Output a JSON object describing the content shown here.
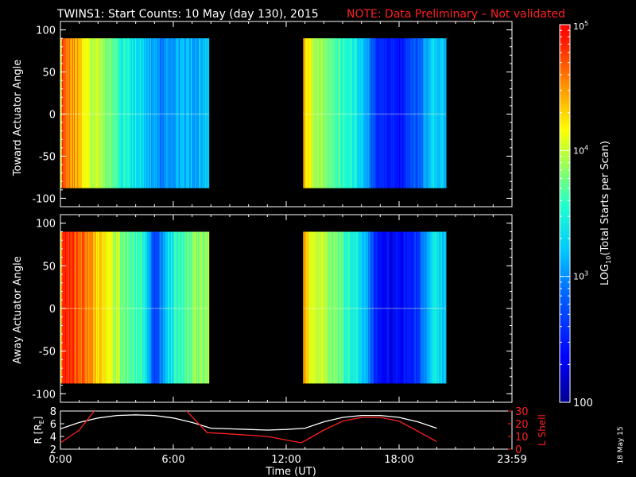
{
  "title": {
    "main": "TWINS1: Start Counts: 10 May (day 130), 2015",
    "note": "NOTE: Data Preliminary – Not validated"
  },
  "side_label": "18 May 15",
  "colors": {
    "background": "#000000",
    "axis": "#ffffff",
    "note": "#ff2020",
    "lshell_line": "#ff2020",
    "r_line": "#ffffff"
  },
  "chart_data": [
    {
      "type": "heatmap",
      "panel": "top",
      "ylabel": "Toward Actuator Angle",
      "ylim": [
        -110,
        110
      ],
      "yticks": [
        "100",
        "50",
        "0",
        "-50",
        "-100"
      ],
      "xlim": [
        0,
        24
      ],
      "data_segments_hours": [
        [
          0,
          7.9
        ],
        [
          12.9,
          20.5
        ]
      ],
      "angle_range": [
        -88,
        90
      ],
      "colormap": "rainbow",
      "color_scale": "log",
      "time_profile": [
        {
          "t": 0.0,
          "v": 4.0
        },
        {
          "t": 0.1,
          "v": 4.75
        },
        {
          "t": 0.5,
          "v": 4.6
        },
        {
          "t": 1.0,
          "v": 4.35
        },
        {
          "t": 1.6,
          "v": 4.05
        },
        {
          "t": 2.2,
          "v": 3.85
        },
        {
          "t": 2.8,
          "v": 3.7
        },
        {
          "t": 3.4,
          "v": 3.5
        },
        {
          "t": 4.0,
          "v": 3.4
        },
        {
          "t": 4.6,
          "v": 3.2
        },
        {
          "t": 5.0,
          "v": 3.05
        },
        {
          "t": 5.6,
          "v": 3.0
        },
        {
          "t": 6.2,
          "v": 3.15
        },
        {
          "t": 7.0,
          "v": 3.1
        },
        {
          "t": 7.9,
          "v": 3.2
        },
        {
          "t": 12.9,
          "v": 4.4
        },
        {
          "t": 13.2,
          "v": 4.1
        },
        {
          "t": 13.8,
          "v": 3.85
        },
        {
          "t": 14.6,
          "v": 3.7
        },
        {
          "t": 15.4,
          "v": 3.5
        },
        {
          "t": 16.2,
          "v": 3.2
        },
        {
          "t": 16.8,
          "v": 2.55
        },
        {
          "t": 18.0,
          "v": 2.45
        },
        {
          "t": 19.0,
          "v": 2.8
        },
        {
          "t": 19.8,
          "v": 3.3
        },
        {
          "t": 20.5,
          "v": 3.1
        }
      ]
    },
    {
      "type": "heatmap",
      "panel": "middle",
      "ylabel": "Away Actuator Angle",
      "ylim": [
        -110,
        110
      ],
      "yticks": [
        "100",
        "50",
        "0",
        "-50",
        "-100"
      ],
      "xlim": [
        0,
        24
      ],
      "data_segments_hours": [
        [
          0,
          7.9
        ],
        [
          12.9,
          20.5
        ]
      ],
      "angle_range": [
        -88,
        90
      ],
      "colormap": "rainbow",
      "color_scale": "log",
      "time_profile": [
        {
          "t": 0.0,
          "v": 4.1
        },
        {
          "t": 0.1,
          "v": 4.85
        },
        {
          "t": 0.5,
          "v": 4.75
        },
        {
          "t": 1.0,
          "v": 4.7
        },
        {
          "t": 1.6,
          "v": 4.5
        },
        {
          "t": 2.2,
          "v": 4.2
        },
        {
          "t": 2.8,
          "v": 4.0
        },
        {
          "t": 3.4,
          "v": 3.8
        },
        {
          "t": 4.0,
          "v": 3.7
        },
        {
          "t": 4.6,
          "v": 3.35
        },
        {
          "t": 5.0,
          "v": 2.6
        },
        {
          "t": 5.6,
          "v": 3.2
        },
        {
          "t": 6.2,
          "v": 3.6
        },
        {
          "t": 7.0,
          "v": 3.7
        },
        {
          "t": 7.9,
          "v": 3.9
        },
        {
          "t": 12.9,
          "v": 4.5
        },
        {
          "t": 13.2,
          "v": 4.2
        },
        {
          "t": 13.8,
          "v": 4.0
        },
        {
          "t": 14.6,
          "v": 3.8
        },
        {
          "t": 15.4,
          "v": 3.55
        },
        {
          "t": 16.2,
          "v": 3.2
        },
        {
          "t": 16.8,
          "v": 2.45
        },
        {
          "t": 18.0,
          "v": 2.35
        },
        {
          "t": 19.0,
          "v": 2.6
        },
        {
          "t": 19.8,
          "v": 3.4
        },
        {
          "t": 20.5,
          "v": 3.2
        }
      ]
    },
    {
      "type": "line",
      "panel": "bottom",
      "ylabel_left": "R [R_E]",
      "ylabel_right": "L Shell",
      "ylim_left": [
        2,
        8
      ],
      "ylim_right": [
        0,
        30
      ],
      "yticks_left": [
        "8",
        "6",
        "4",
        "2"
      ],
      "yticks_right": [
        "30",
        "20",
        "10",
        "0"
      ],
      "xlabel": "Time (UT)",
      "xlim": [
        0,
        24
      ],
      "xtick_labels": [
        "0:00",
        "6:00",
        "12:00",
        "18:00",
        "23:59"
      ],
      "xtick_values": [
        0,
        6,
        12,
        18,
        24
      ],
      "series": [
        {
          "axis": "left",
          "color": "#ffffff",
          "x": [
            0,
            1,
            2,
            3,
            4,
            5,
            6,
            7,
            8,
            9,
            10,
            11,
            12,
            13,
            14,
            15,
            16,
            17,
            18,
            19,
            20
          ],
          "y": [
            5.2,
            6.2,
            6.9,
            7.3,
            7.4,
            7.3,
            6.9,
            6.2,
            5.3,
            5.2,
            5.1,
            5.0,
            5.1,
            5.3,
            6.3,
            7.0,
            7.3,
            7.3,
            7.0,
            6.3,
            5.3
          ]
        },
        {
          "axis": "right",
          "color": "#ff2020",
          "x": [
            0,
            1,
            1.8,
            2.0,
            6.5,
            6.7,
            7.8,
            9.0,
            10.0,
            11.0,
            12.8,
            14.0,
            15.0,
            16.0,
            17.0,
            18.0,
            19.0,
            20.0
          ],
          "y": [
            5,
            15,
            30,
            34,
            34,
            30,
            13,
            12,
            11,
            10,
            5,
            15,
            22,
            25,
            25,
            22,
            14,
            6
          ]
        }
      ]
    }
  ],
  "colorbar": {
    "label": "LOG10(Total Starts per Scan)",
    "ticks": [
      "10^5",
      "10^4",
      "10^3",
      "100"
    ],
    "tick_values": [
      5,
      4,
      3,
      2
    ],
    "range": [
      2,
      5
    ]
  }
}
